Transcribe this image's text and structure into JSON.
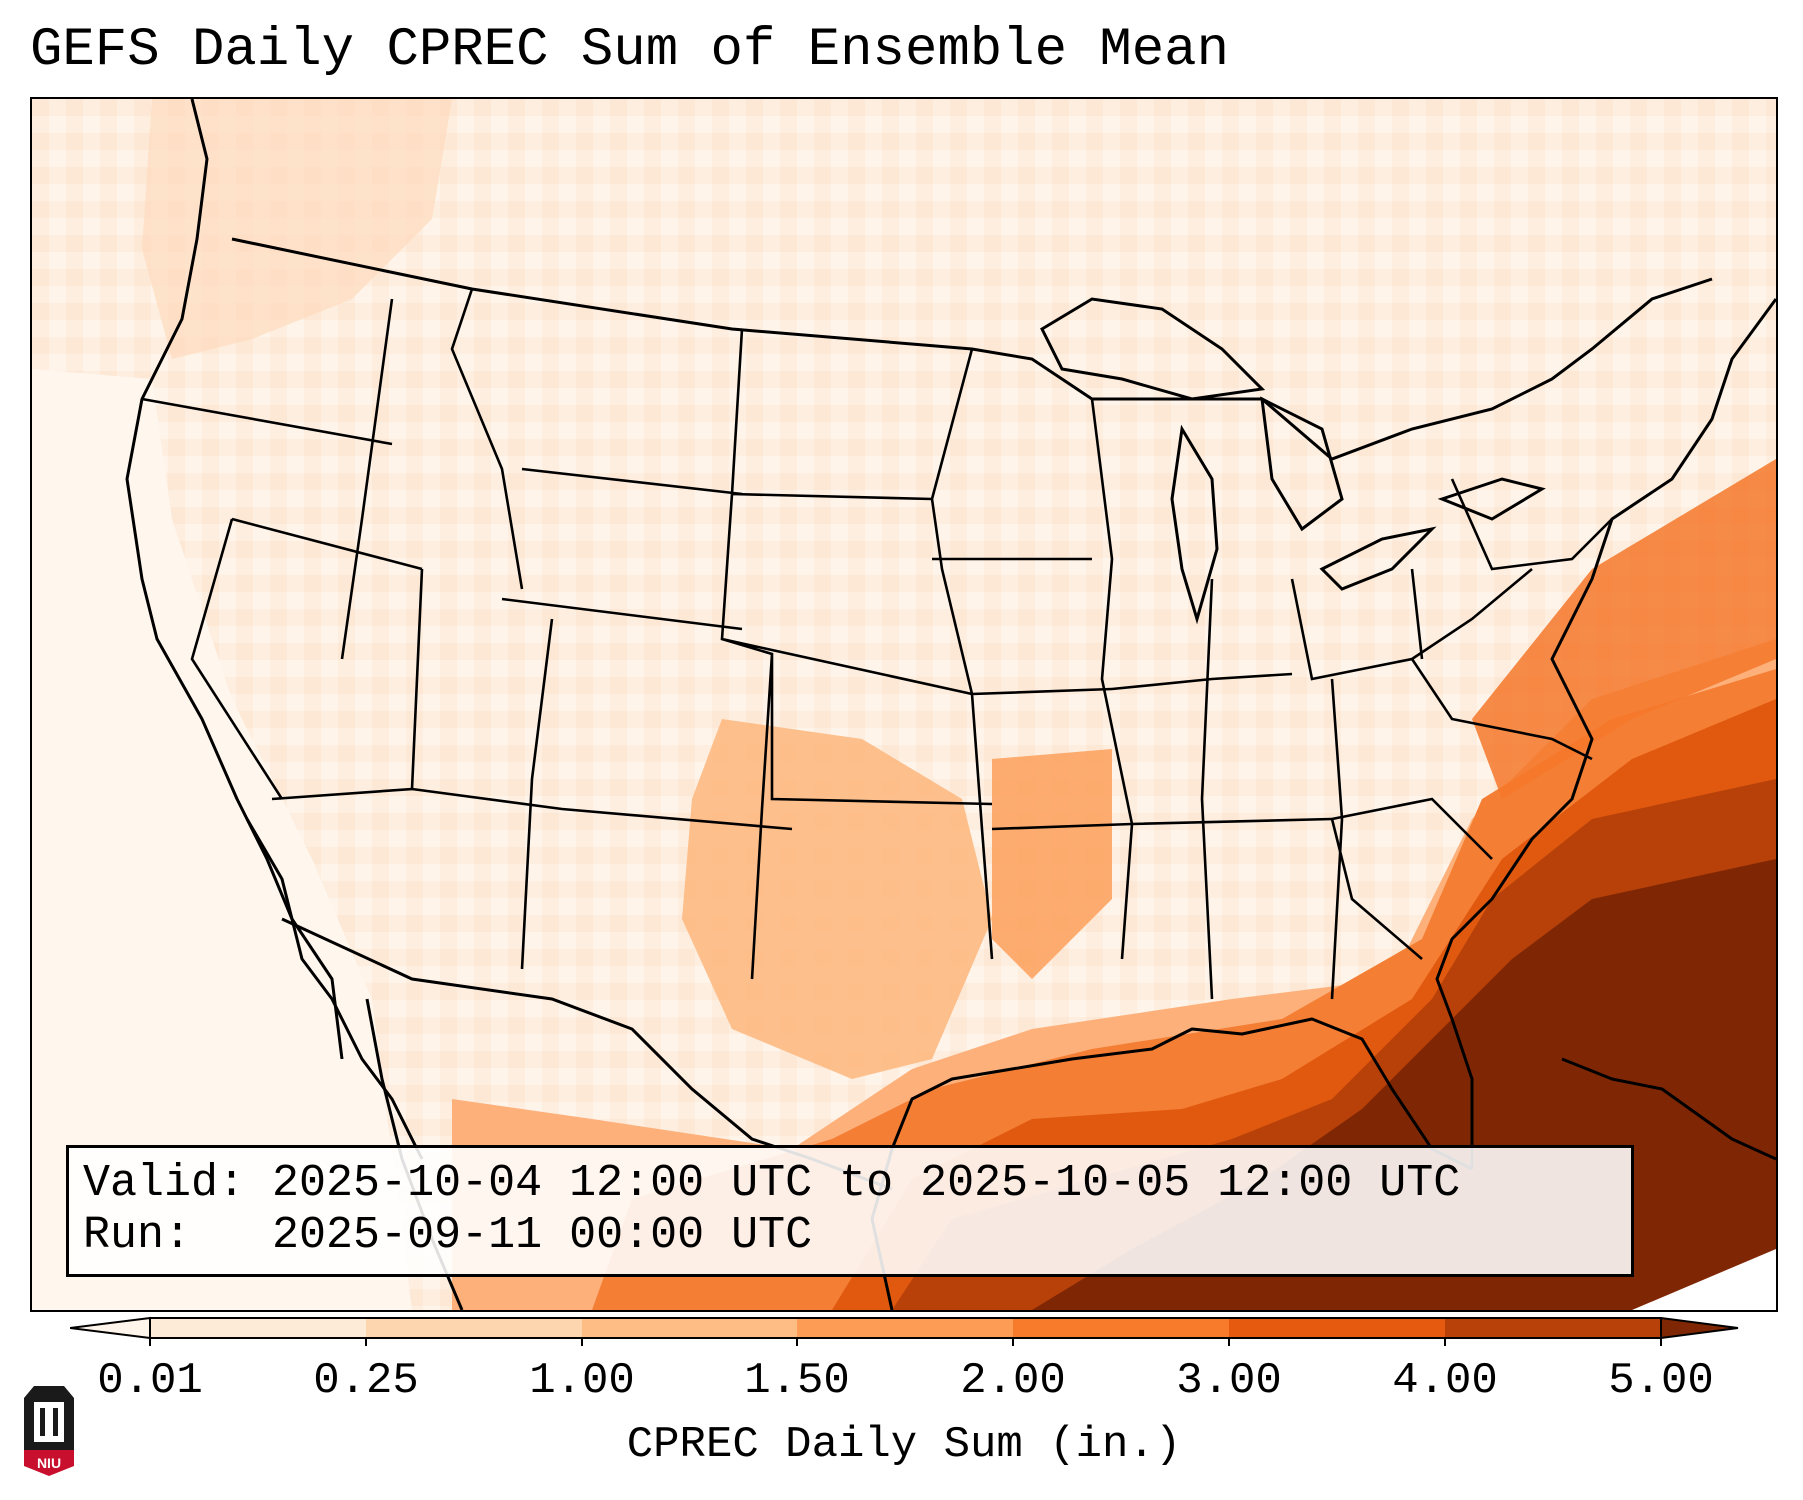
{
  "title": "GEFS Daily CPREC Sum of Ensemble Mean",
  "info": {
    "valid_label": "Valid:",
    "valid_value": "2025-10-04 12:00 UTC to 2025-10-05 12:00 UTC",
    "run_label": "Run:",
    "run_value": "2025-09-11 00:00 UTC"
  },
  "colorbar": {
    "title": "CPREC Daily Sum (in.)",
    "ticks": [
      "0.01",
      "0.25",
      "1.00",
      "1.50",
      "2.00",
      "3.00",
      "4.00",
      "5.00"
    ],
    "bin_colors": [
      "#fdebd8",
      "#fdd6b0",
      "#fdbd84",
      "#fd9d55",
      "#f77b2a",
      "#e55a0f",
      "#b8410a"
    ],
    "under_color": "#fff5eb",
    "over_color": "#7f2704"
  },
  "logo": {
    "text": "NIU"
  },
  "colors": {
    "border": "#000000",
    "land_base": "#fdf0e2",
    "heavy": "#7f2704",
    "strong": "#e55a0f",
    "moderate": "#f77b2a"
  }
}
